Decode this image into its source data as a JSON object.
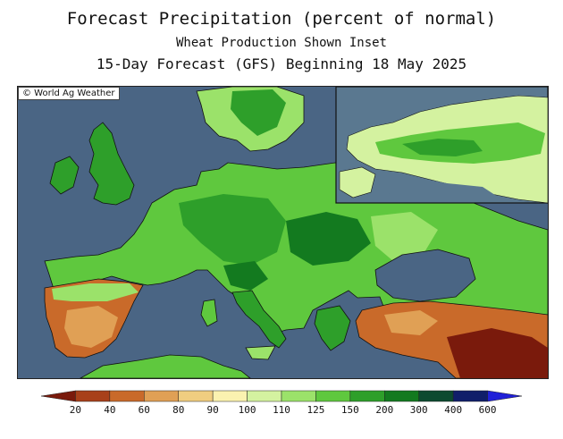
{
  "title": {
    "line1": "Forecast Precipitation (percent of normal)",
    "line2": "Wheat Production Shown Inset",
    "line3": "15-Day Forecast (GFS) Beginning 18 May 2025"
  },
  "copyright": "© World Ag Weather",
  "legend": {
    "ticks": [
      "20",
      "40",
      "60",
      "80",
      "90",
      "100",
      "110",
      "125",
      "150",
      "200",
      "300",
      "400",
      "600"
    ],
    "colors": [
      "#7a1a0c",
      "#a8401a",
      "#c96a2a",
      "#e0a055",
      "#f0cd80",
      "#fbf2b0",
      "#d4f2a0",
      "#9be26a",
      "#5fc83e",
      "#2e9f2a",
      "#137a1f",
      "#0c4a30",
      "#101e6a",
      "#2020d8"
    ]
  },
  "map": {
    "ocean_color": "#4a6584",
    "inset_ocean_color": "#5a7890",
    "border_color": "#111111"
  }
}
